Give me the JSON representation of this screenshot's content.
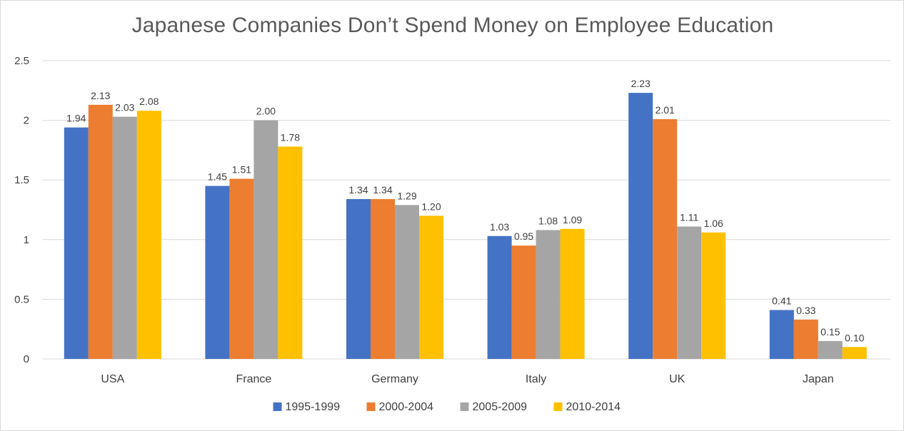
{
  "chart_data": {
    "type": "bar",
    "title": "Japanese Companies Don’t Spend Money on Employee Education",
    "xlabel": "",
    "ylabel": "",
    "categories": [
      "USA",
      "France",
      "Germany",
      "Italy",
      "UK",
      "Japan"
    ],
    "series": [
      {
        "name": "1995-1999",
        "color": "#4472C4",
        "values": [
          1.94,
          1.45,
          1.34,
          1.03,
          2.23,
          0.41
        ]
      },
      {
        "name": "2000-2004",
        "color": "#ED7D31",
        "values": [
          2.13,
          1.51,
          1.34,
          0.95,
          2.01,
          0.33
        ]
      },
      {
        "name": "2005-2009",
        "color": "#A5A5A5",
        "values": [
          2.03,
          2.0,
          1.29,
          1.08,
          1.11,
          0.15
        ]
      },
      {
        "name": "2010-2014",
        "color": "#FFC000",
        "values": [
          2.08,
          1.78,
          1.2,
          1.09,
          1.06,
          0.1
        ]
      }
    ],
    "ylim": [
      0,
      2.5
    ],
    "yticks": [
      "0",
      "0.5",
      "1",
      "1.5",
      "2",
      "2.5"
    ],
    "yticks_values": [
      0,
      0.5,
      1,
      1.5,
      2,
      2.5
    ],
    "grid": true,
    "legend_position": "bottom",
    "data_label_decimals": 2
  }
}
